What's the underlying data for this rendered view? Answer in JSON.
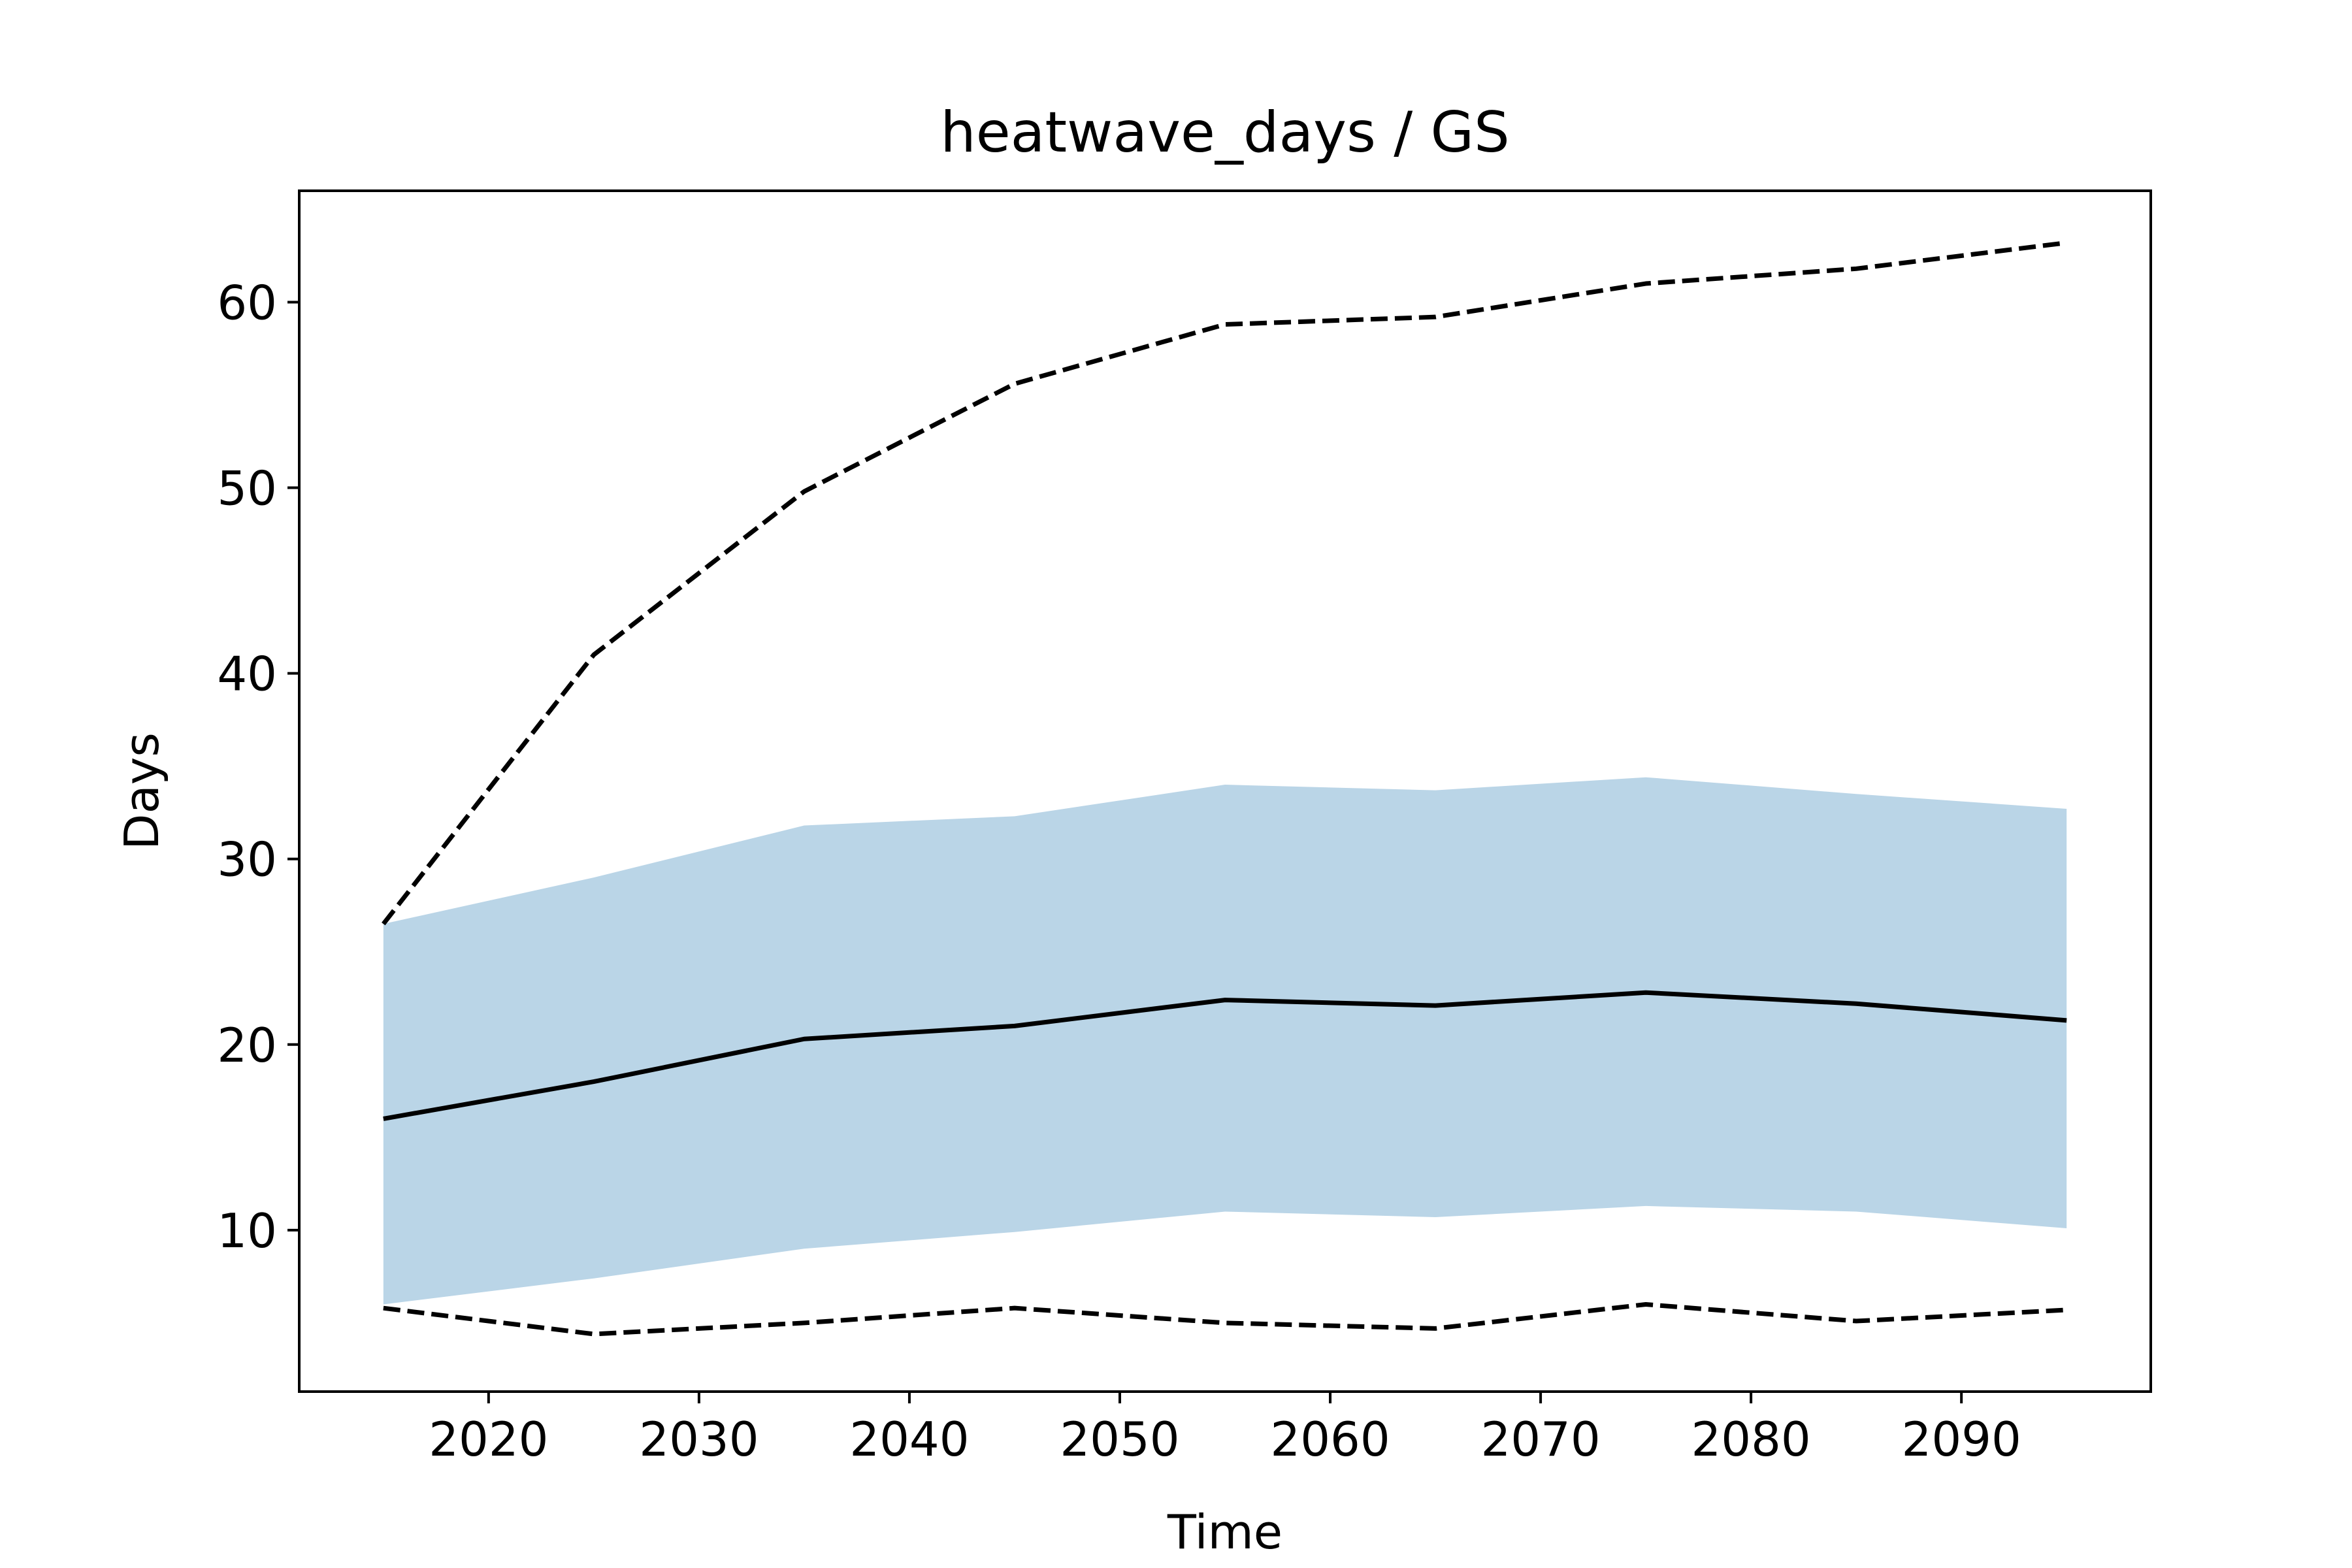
{
  "chart_data": {
    "type": "line",
    "title": "heatwave_days / GS",
    "xlabel": "Time",
    "ylabel": "Days",
    "xlim": [
      2011,
      2099
    ],
    "ylim": [
      1.3,
      66
    ],
    "xticks": [
      2020,
      2030,
      2040,
      2050,
      2060,
      2070,
      2080,
      2090
    ],
    "yticks": [
      10,
      20,
      30,
      40,
      50,
      60
    ],
    "x": [
      2015,
      2025,
      2035,
      2045,
      2055,
      2065,
      2075,
      2085,
      2095
    ],
    "band": {
      "lower": [
        6,
        7.4,
        9,
        9.9,
        11,
        10.7,
        11.3,
        11,
        10.1
      ],
      "upper": [
        26.5,
        29,
        31.8,
        32.3,
        34,
        33.7,
        34.4,
        33.5,
        32.7
      ],
      "color": "#bad5e7"
    },
    "series": [
      {
        "values": [
          16,
          18,
          20.3,
          21,
          22.4,
          22.1,
          22.8,
          22.2,
          21.3
        ],
        "style": "solid",
        "color": "#000000"
      },
      {
        "values": [
          26.5,
          41,
          49.8,
          55.6,
          58.8,
          59.2,
          61,
          61.8,
          63.2
        ],
        "style": "dashed",
        "color": "#000000"
      },
      {
        "values": [
          5.8,
          4.4,
          5,
          5.8,
          5,
          4.7,
          6,
          5.1,
          5.7
        ],
        "style": "dashed",
        "color": "#000000"
      }
    ],
    "grid": false,
    "legend": "none"
  }
}
